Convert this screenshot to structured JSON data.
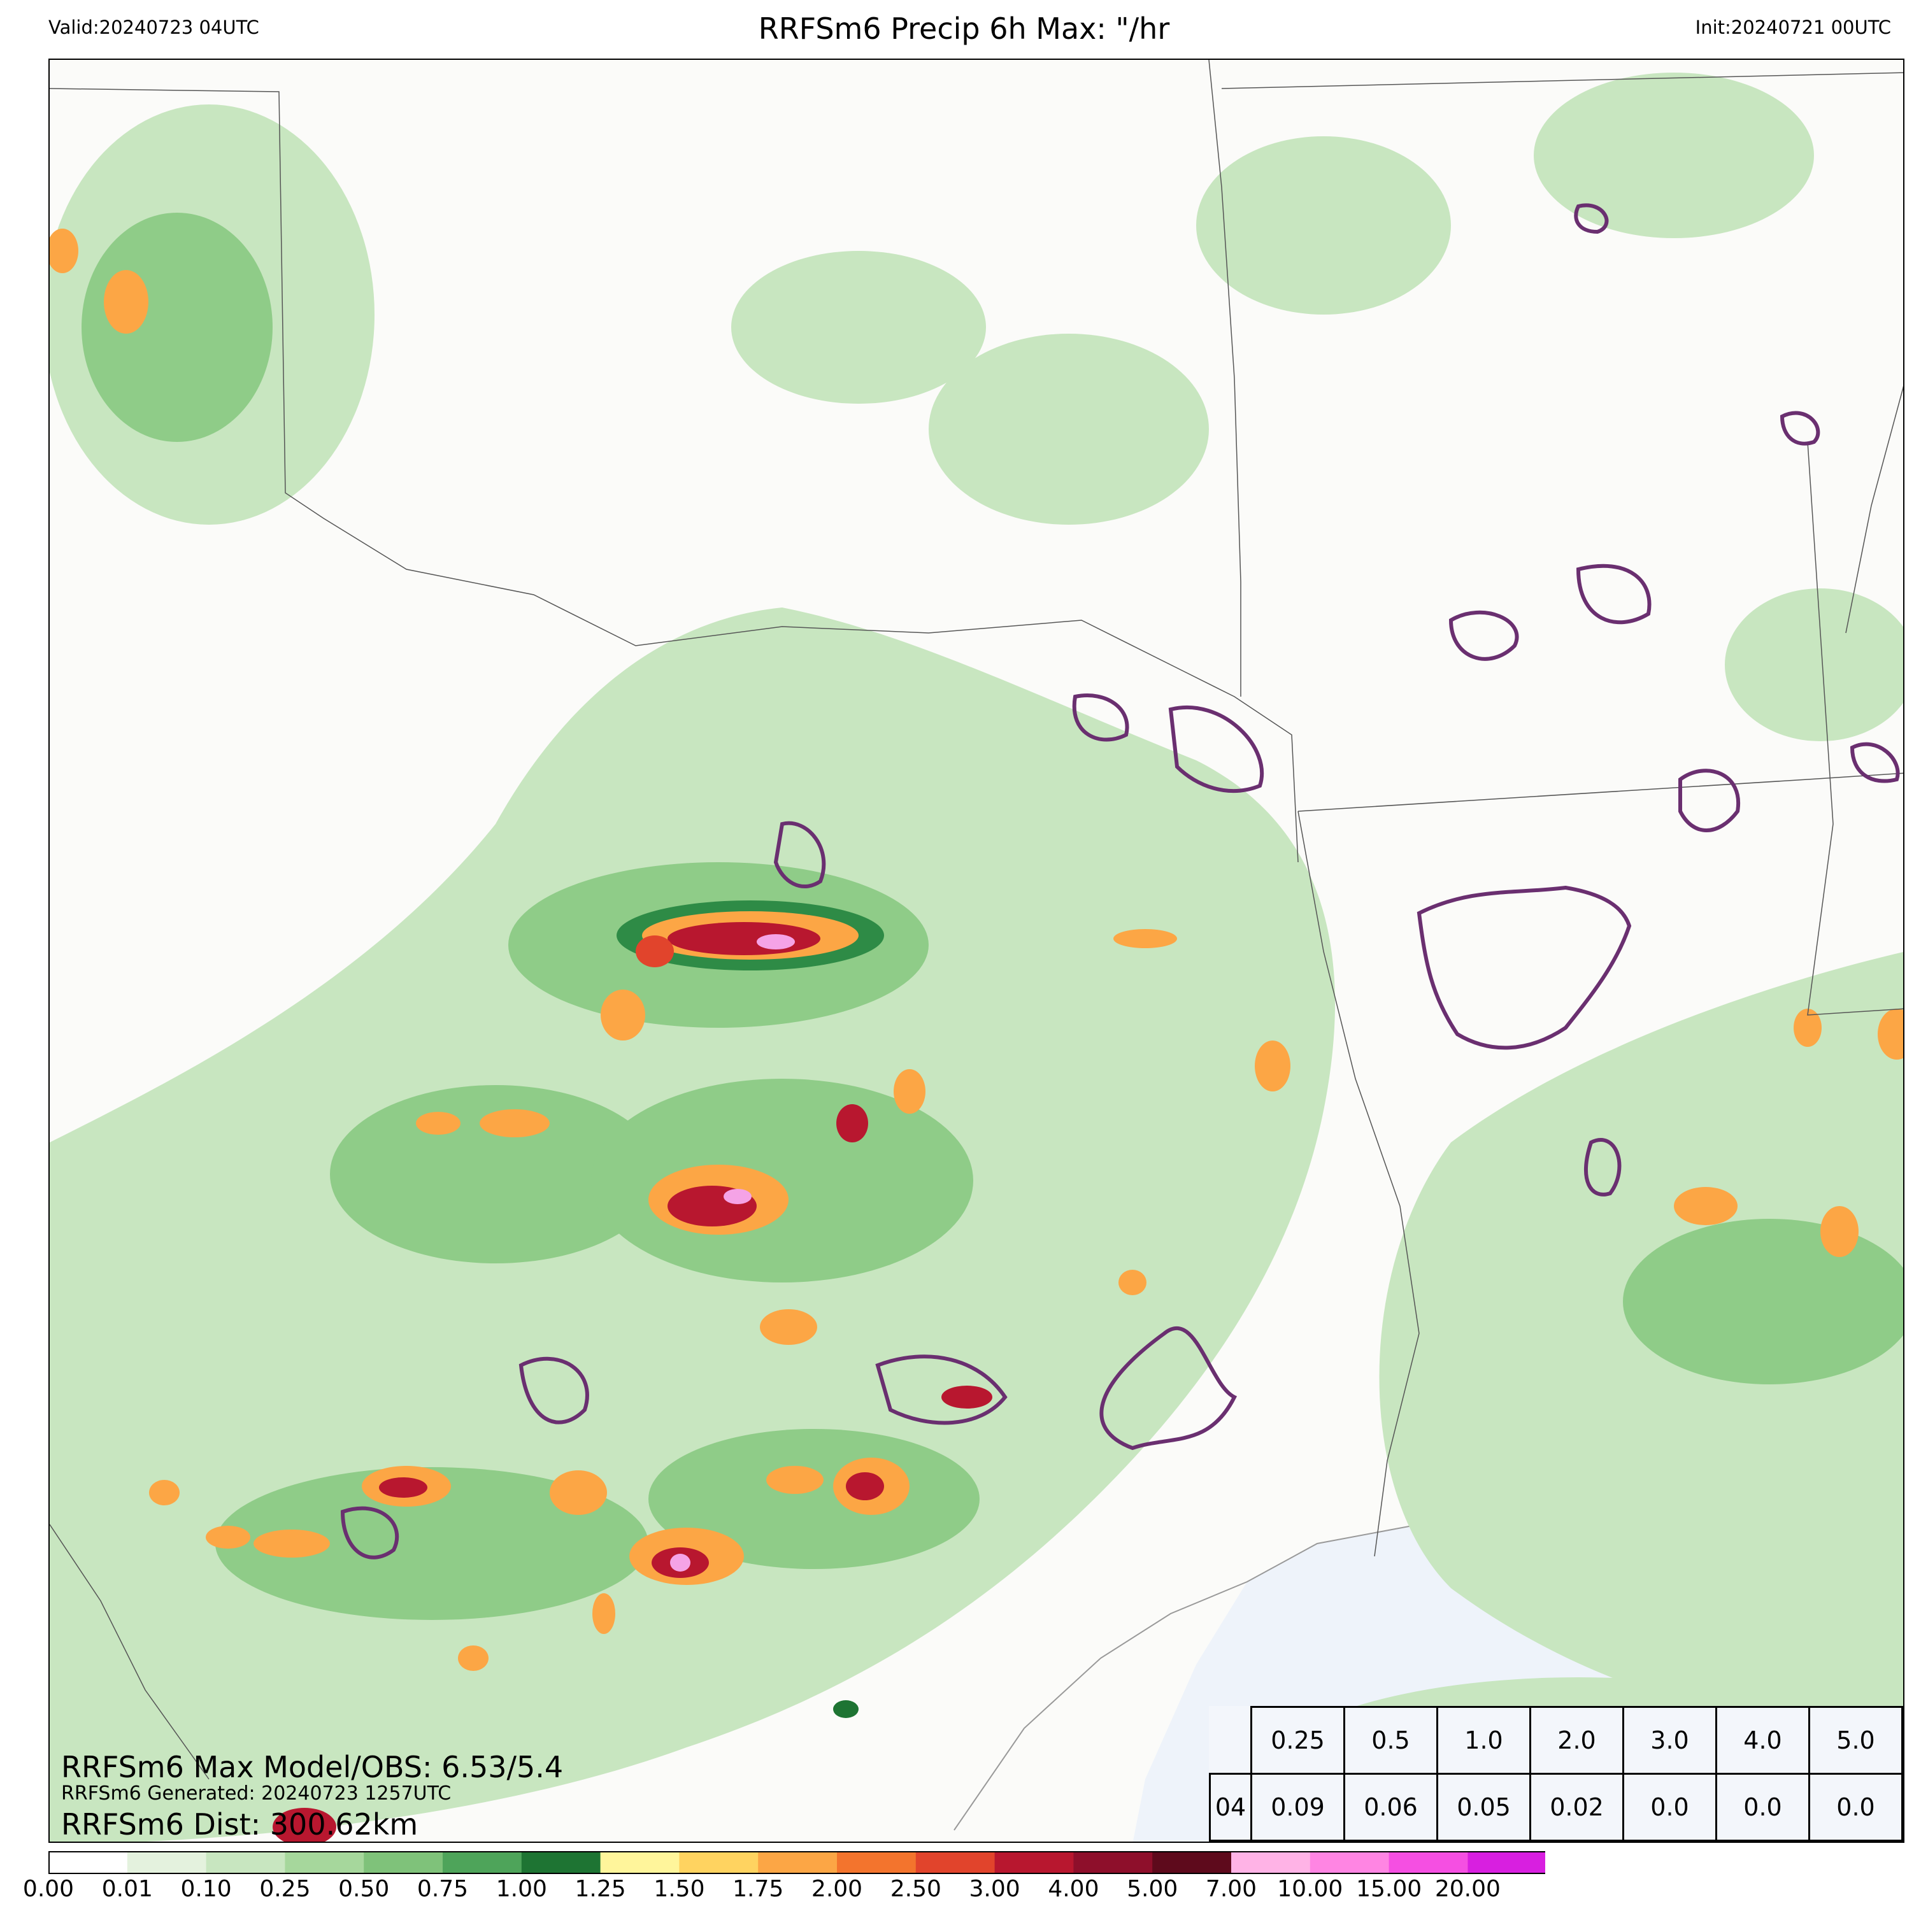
{
  "header": {
    "valid": "Valid:20240723 04UTC",
    "title": "RRFSm6 Precip 6h Max: \"/hr",
    "init": "Init:20240721 00UTC"
  },
  "overlay": {
    "max_line": "RRFSm6 Max Model/OBS: 6.53/5.4",
    "generated_line": "RRFSm6 Generated: 20240723 1257UTC",
    "dist_line": "RRFSm6 Dist: 300.62km"
  },
  "stats_table": {
    "thresholds": [
      "0.25",
      "0.5",
      "1.0",
      "2.0",
      "3.0",
      "4.0",
      "5.0"
    ],
    "row_label": "04",
    "values": [
      "0.09",
      "0.06",
      "0.05",
      "0.02",
      "0.0",
      "0.0",
      "0.0"
    ]
  },
  "colorbar": {
    "ticks": [
      "0.00",
      "0.01",
      "0.10",
      "0.25",
      "0.50",
      "0.75",
      "1.00",
      "1.25",
      "1.50",
      "1.75",
      "2.00",
      "2.50",
      "3.00",
      "4.00",
      "5.00",
      "7.00",
      "10.00",
      "15.00",
      "20.00"
    ],
    "colors": [
      "#ffffff",
      "#e4f2de",
      "#c8e6c0",
      "#a6d79c",
      "#7fc27a",
      "#4ea45a",
      "#1e7433",
      "#fff59b",
      "#ffd360",
      "#fca645",
      "#f3742d",
      "#e1442c",
      "#b8172f",
      "#8e0f2b",
      "#5e0a1c",
      "#ffb3e6",
      "#ff85e3",
      "#f54fe2",
      "#d81fe0",
      "#9b0fd0"
    ],
    "extend_color": "#7a06b8"
  },
  "legend_colors": {
    "light_green": "#c8e6c0",
    "mid_green": "#8fcc88",
    "dark_green": "#2e8b46",
    "yellow": "#fff59b",
    "orange": "#f39a3c",
    "red": "#d2232f",
    "dark_red": "#7a0a24",
    "pink": "#f5a3e6",
    "obs_contour": "#6a2f70",
    "water": "#eef3fa"
  }
}
